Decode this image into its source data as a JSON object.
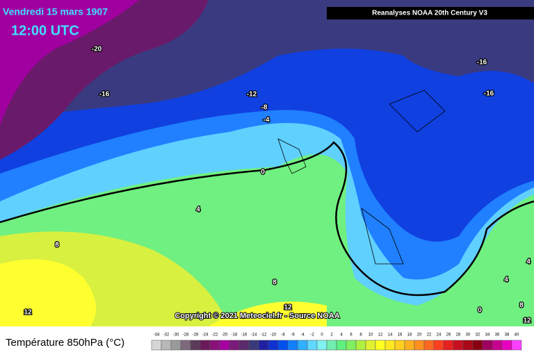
{
  "header": {
    "date": "Vendredi 15 mars 1907",
    "time": "12:00 UTC",
    "source": "Reanalyses NOAA 20th Century V3"
  },
  "copyright": "Copyright © 2021 Meteociel.fr - Source NOAA",
  "contour_labels": [
    "-20",
    "-16",
    "-12",
    "-8",
    "-4",
    "0",
    "4",
    "8",
    "8",
    "12",
    "12",
    "-16",
    "-16",
    "0",
    "4",
    "4",
    "8",
    "12"
  ],
  "legend": {
    "title": "Température 850hPa (°C)",
    "ticks": [
      -34,
      -32,
      -30,
      -28,
      -26,
      -24,
      -22,
      -20,
      -18,
      -16,
      -14,
      -12,
      -10,
      -8,
      -6,
      -4,
      -2,
      0,
      2,
      4,
      6,
      8,
      10,
      12,
      14,
      16,
      18,
      20,
      22,
      24,
      26,
      28,
      30,
      32,
      34,
      36,
      38,
      40
    ],
    "colors": [
      "#d6d6d6",
      "#b8b8b8",
      "#9a9a9a",
      "#7c6a7c",
      "#5c3a5c",
      "#6a1a5a",
      "#8a107a",
      "#a800a0",
      "#7a1a7a",
      "#5a2a6a",
      "#3a3a7a",
      "#2020a0",
      "#1030d0",
      "#0050f0",
      "#1080ff",
      "#30b0ff",
      "#60d8ff",
      "#80f0f0",
      "#70f0b0",
      "#60f080",
      "#80f060",
      "#b0f040",
      "#e0f030",
      "#ffff20",
      "#ffe820",
      "#ffd020",
      "#ffb020",
      "#ff9020",
      "#ff6820",
      "#ff4020",
      "#e82020",
      "#c81020",
      "#a80818",
      "#880010",
      "#a00060",
      "#c80090",
      "#e800c0",
      "#ff40ff"
    ]
  }
}
